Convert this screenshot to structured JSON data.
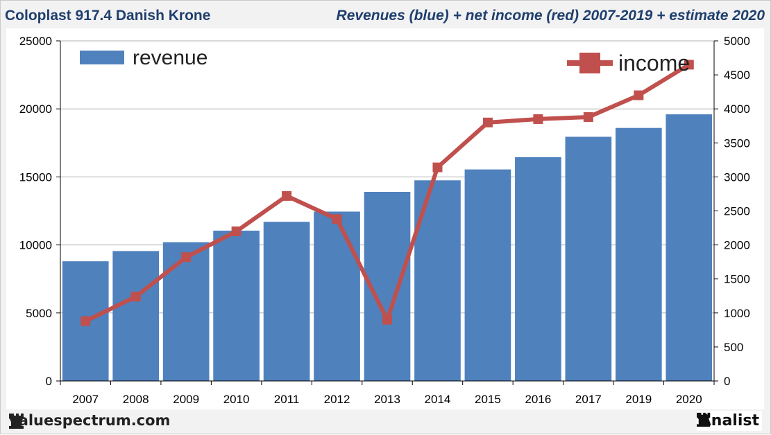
{
  "header": {
    "title_left": "Coloplast 917.4 Danish Krone",
    "title_right": "Revenues (blue) + net income (red) 2007-2019 + estimate 2020"
  },
  "footer": {
    "brand": "valuespectrum.com",
    "analist": "Analist"
  },
  "colors": {
    "bar": "#4f81bd",
    "line": "#c0504d",
    "grid": "#b0b0b0",
    "axis": "#000000"
  },
  "chart_data": {
    "type": "bar",
    "categories": [
      "2007",
      "2008",
      "2009",
      "2010",
      "2011",
      "2012",
      "2013",
      "2014",
      "2015",
      "2016",
      "2017",
      "2019",
      "2020"
    ],
    "series": [
      {
        "name": "revenue",
        "type": "bar",
        "axis": "left",
        "values": [
          8800,
          9550,
          10200,
          11050,
          11700,
          12450,
          13900,
          14750,
          15550,
          16450,
          17950,
          18600,
          19600
        ]
      },
      {
        "name": "income",
        "type": "line",
        "axis": "right",
        "values": [
          880,
          1240,
          1820,
          2200,
          2720,
          2380,
          900,
          3140,
          3800,
          3850,
          3880,
          4200,
          4650
        ]
      }
    ],
    "ylim_left": [
      0,
      25000
    ],
    "yticks_left": [
      "0",
      "5000",
      "10000",
      "15000",
      "20000",
      "25000"
    ],
    "ylim_right": [
      0,
      5000
    ],
    "yticks_right": [
      "0",
      "500",
      "1000",
      "1500",
      "2000",
      "2500",
      "3000",
      "3500",
      "4000",
      "4500",
      "5000"
    ],
    "legend": {
      "bar_label": "revenue",
      "line_label": "income",
      "placement": "top"
    },
    "grid": true
  }
}
